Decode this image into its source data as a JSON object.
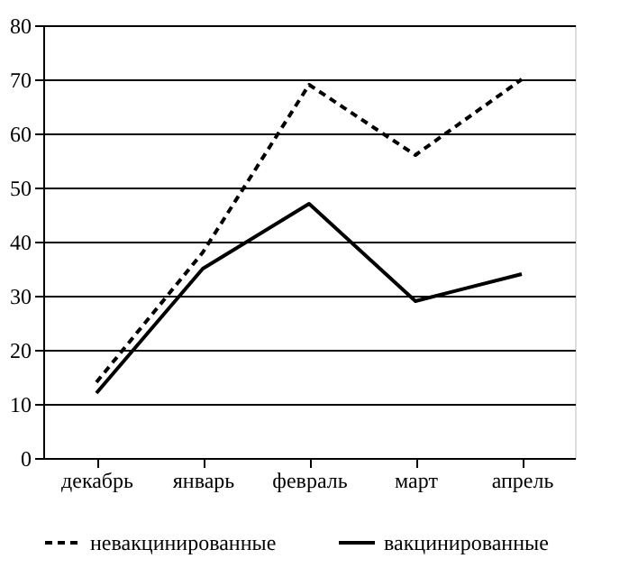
{
  "chart_data": {
    "type": "line",
    "categories": [
      "декабрь",
      "январь",
      "февраль",
      "март",
      "апрель"
    ],
    "series": [
      {
        "name": "невакцинированные",
        "color": "#000000",
        "line_style": "dashed",
        "values": [
          14,
          38,
          69,
          56,
          70
        ]
      },
      {
        "name": "вакцинированные",
        "color": "#000000",
        "line_style": "solid",
        "values": [
          12,
          35,
          47,
          29,
          34
        ]
      }
    ],
    "ylim": [
      0,
      80
    ],
    "yticks": [
      0,
      10,
      20,
      30,
      40,
      50,
      60,
      70,
      80
    ],
    "grid": "y",
    "legend": "bottom",
    "marker": "none"
  }
}
